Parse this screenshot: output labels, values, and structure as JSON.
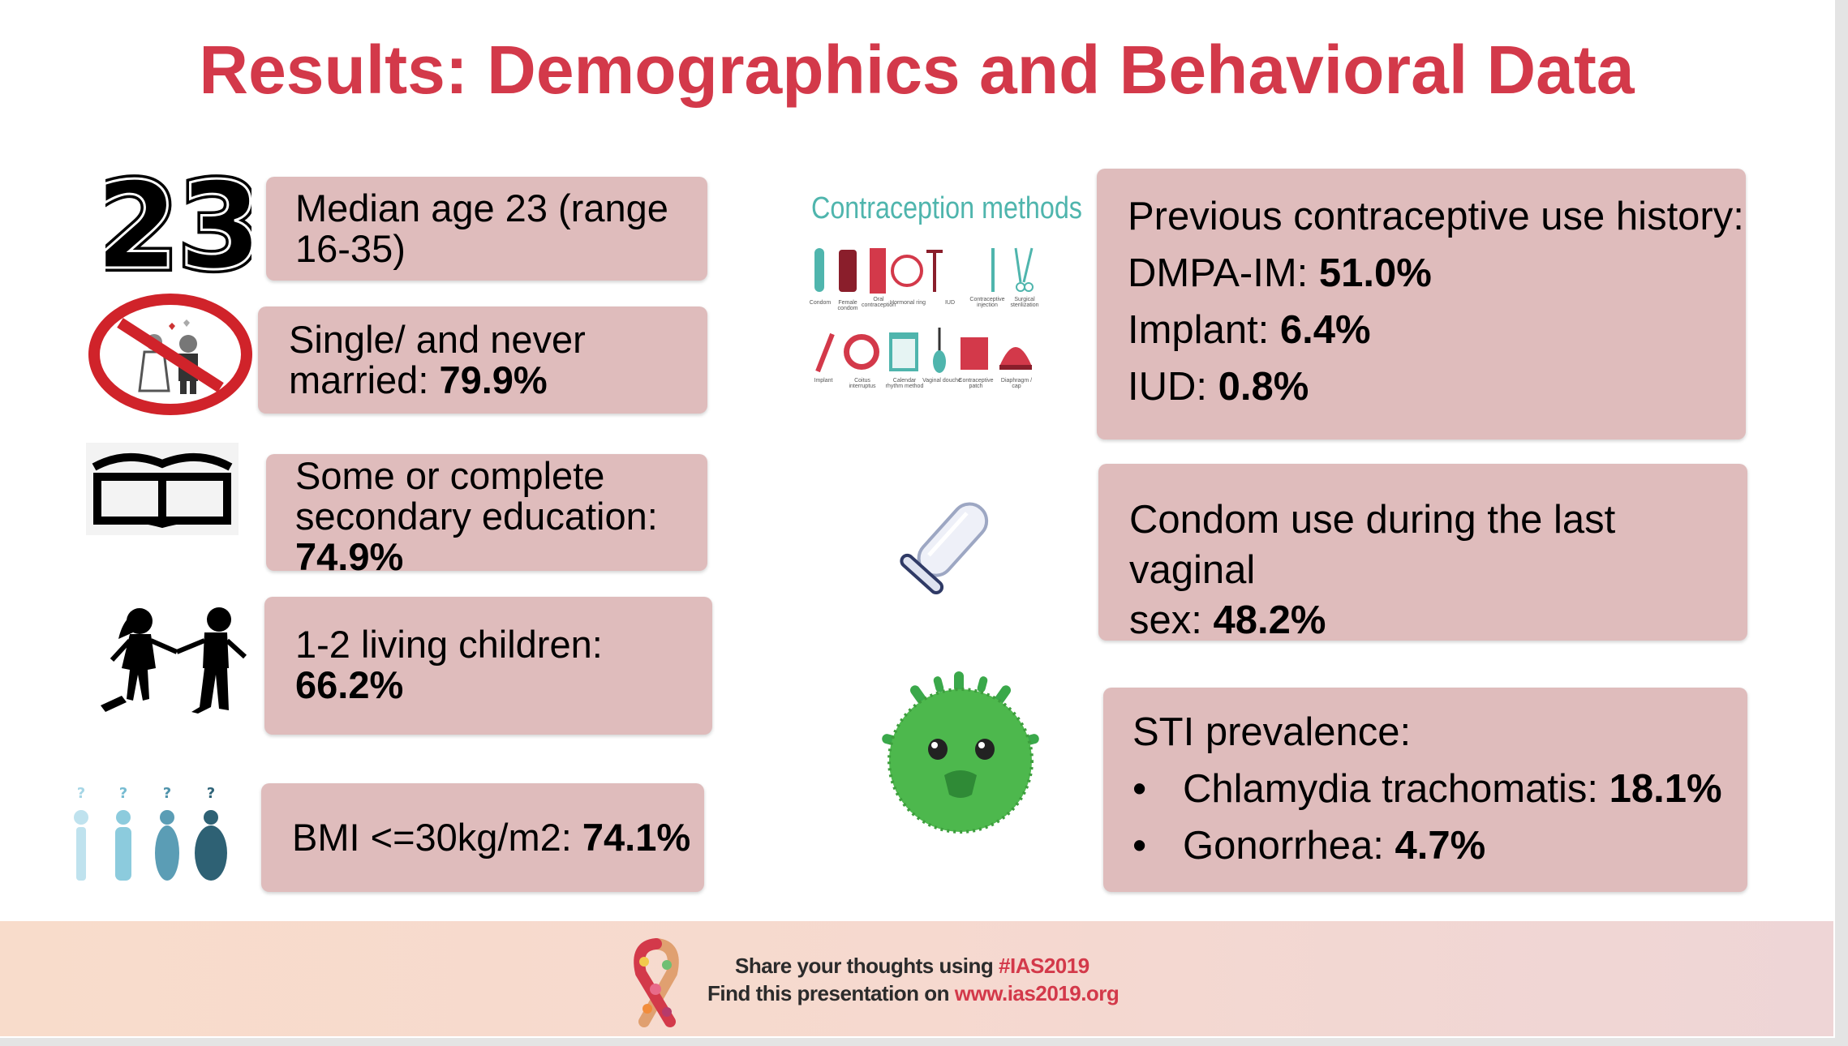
{
  "title": "Results: Demographics and Behavioral Data",
  "left": {
    "age": {
      "icon_text": "23",
      "line1": "Median age 23 (range",
      "line2": "16-35)"
    },
    "marital": {
      "line1": "Single/ and never",
      "line2_prefix": "married: ",
      "line2_value": "79.9%"
    },
    "education": {
      "line1": "Some or complete",
      "line2": "secondary education:",
      "line3_value": "74.9%"
    },
    "children": {
      "line1": "1-2 living children:",
      "line2_value": "66.2%"
    },
    "bmi": {
      "prefix": "BMI <=30kg/m2: ",
      "value": "74.1%",
      "marks": [
        "?",
        "?",
        "?",
        "?"
      ]
    }
  },
  "contraception": {
    "title": "Contraception methods",
    "row1_labels": [
      "Condom",
      "Female condom",
      "Oral contraception",
      "Hormonal ring",
      "IUD",
      "Contraceptive injection",
      "Surgical sterilization"
    ],
    "row2_labels": [
      "Implant",
      "Coitus interruptus",
      "Calendar rhythm method",
      "Vaginal douche",
      "Contraceptive patch",
      "Diaphragm / cap"
    ]
  },
  "right": {
    "history": {
      "heading": "Previous contraceptive use history:",
      "items": [
        {
          "label": "DMPA-IM: ",
          "value": "51.0%"
        },
        {
          "label": "Implant: ",
          "value": "6.4%"
        },
        {
          "label": "IUD: ",
          "value": "0.8%"
        }
      ]
    },
    "condom": {
      "line1": "Condom use during the last vaginal",
      "line2_prefix": "sex: ",
      "line2_value": "48.2%"
    },
    "sti": {
      "heading": "STI prevalence:",
      "bullet": "•",
      "items": [
        {
          "label": "Chlamydia trachomatis: ",
          "value": "18.1%"
        },
        {
          "label": "Gonorrhea: ",
          "value": "4.7%"
        }
      ]
    }
  },
  "footer": {
    "line1_prefix": "Share your thoughts using ",
    "line1_tag": "#IAS2019",
    "line2_prefix": "Find this presentation on ",
    "line2_url": "www.ias2019.org"
  },
  "colors": {
    "accent": "#d3394a",
    "box": "#dfbcbc",
    "teal": "#4fb5ad",
    "green": "#4db84d"
  }
}
